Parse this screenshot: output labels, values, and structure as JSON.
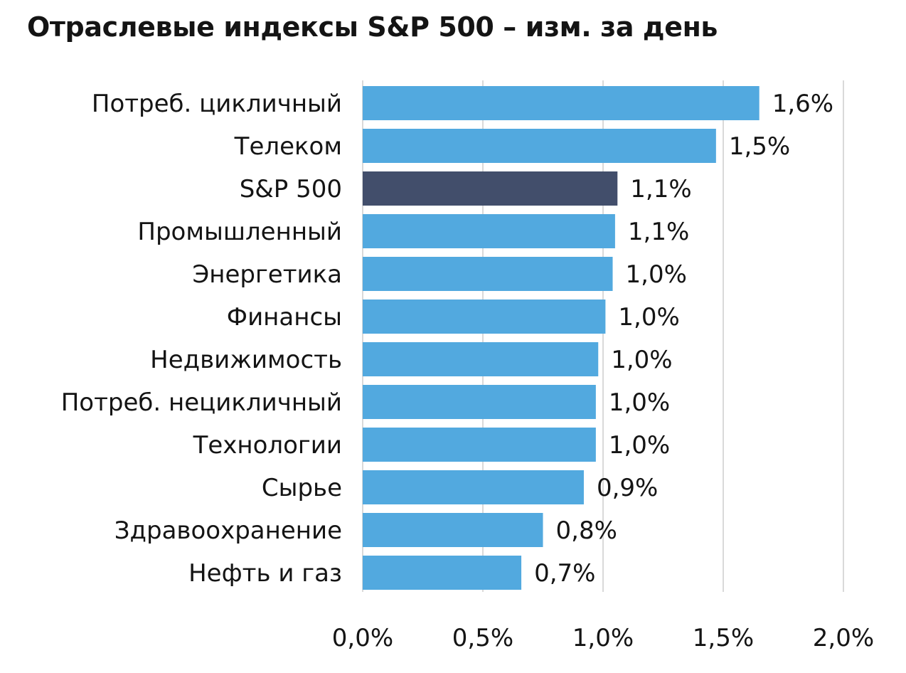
{
  "chart_data": {
    "type": "bar",
    "orientation": "horizontal",
    "title": "Отраслевые индексы S&P 500 – изм. за день",
    "categories": [
      "Потреб. цикличный",
      "Телеком",
      "S&P 500",
      "Промышленный",
      "Энергетика",
      "Финансы",
      "Недвижимость",
      "Потреб. нецикличный",
      "Технологии",
      "Сырье",
      "Здравоохранение",
      "Нефть и газ"
    ],
    "values": [
      1.65,
      1.47,
      1.06,
      1.05,
      1.04,
      1.01,
      0.98,
      0.97,
      0.97,
      0.92,
      0.75,
      0.66
    ],
    "data_labels": [
      "1,6%",
      "1,5%",
      "1,1%",
      "1,1%",
      "1,0%",
      "1,0%",
      "1,0%",
      "1,0%",
      "1,0%",
      "0,9%",
      "0,8%",
      "0,7%"
    ],
    "highlight_category": "S&P 500",
    "xlim": [
      0,
      2.0
    ],
    "xticks": [
      0,
      0.5,
      1.0,
      1.5,
      2.0
    ],
    "xtick_labels": [
      "0,0%",
      "0,5%",
      "1,0%",
      "1,5%",
      "2,0%"
    ],
    "grid": "vertical",
    "legend": "none",
    "xlabel": "",
    "ylabel": ""
  },
  "colors": {
    "bar": "#52a9df",
    "highlight": "#424e6b",
    "grid": "#d9d9d9",
    "text": "#141414"
  }
}
